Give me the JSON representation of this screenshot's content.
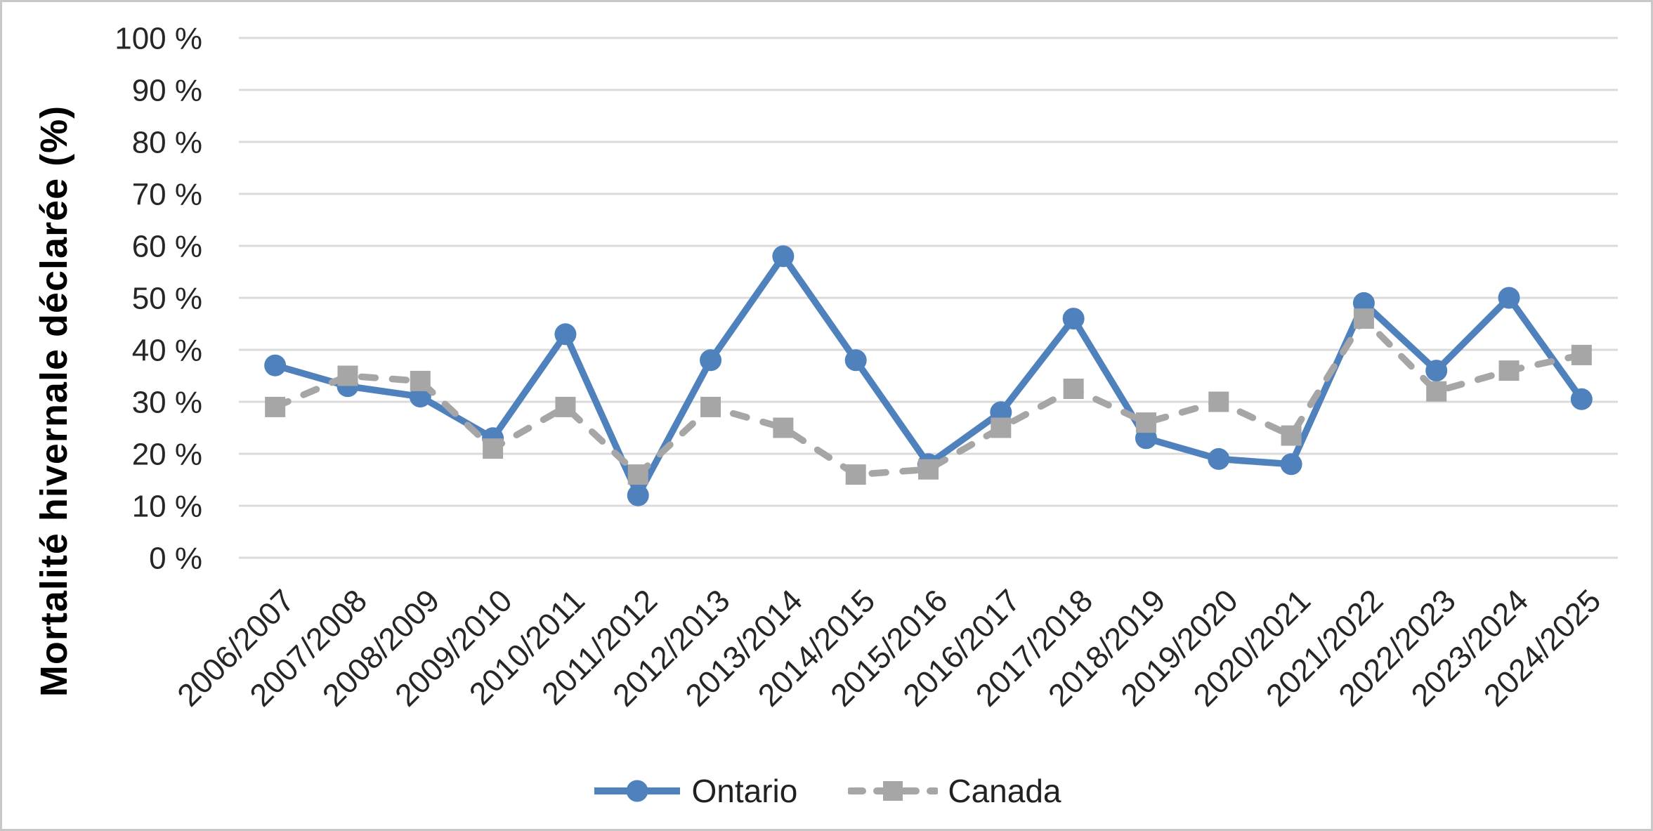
{
  "chart_data": {
    "type": "line",
    "title": "",
    "xlabel": "",
    "ylabel": "Mortalité hivernale déclarée (%)",
    "ylim": [
      0,
      100
    ],
    "y_ticks": [
      0,
      10,
      20,
      30,
      40,
      50,
      60,
      70,
      80,
      90,
      100
    ],
    "y_tick_labels": [
      "0 %",
      "10 %",
      "20 %",
      "30 %",
      "40 %",
      "50 %",
      "60 %",
      "70 %",
      "80 %",
      "90 %",
      "100 %"
    ],
    "grid": true,
    "legend_position": "bottom",
    "categories": [
      "2006/2007",
      "2007/2008",
      "2008/2009",
      "2009/2010",
      "2010/2011",
      "2011/2012",
      "2012/2013",
      "2013/2014",
      "2014/2015",
      "2015/2016",
      "2016/2017",
      "2017/2018",
      "2018/2019",
      "2019/2020",
      "2020/2021",
      "2021/2022",
      "2022/2023",
      "2023/2024",
      "2024/2025"
    ],
    "series": [
      {
        "name": "Ontario",
        "color": "#4F81BD",
        "marker": "circle",
        "line_style": "solid",
        "values": [
          37,
          33,
          31,
          23,
          43,
          12,
          38,
          58,
          38,
          18,
          28,
          46,
          23,
          19,
          18,
          49,
          36,
          50,
          30.5
        ]
      },
      {
        "name": "Canada",
        "color": "#A6A6A6",
        "marker": "square",
        "line_style": "dashed",
        "values": [
          29,
          35,
          34,
          21,
          29,
          16,
          29,
          25,
          16,
          17,
          25,
          32.5,
          26,
          30,
          23.5,
          46,
          32,
          36,
          39
        ]
      }
    ]
  },
  "colors": {
    "gridline": "#DBDBDB",
    "tick_text": "#262626",
    "axis_title_text": "#000000",
    "legend_text": "#212121",
    "background": "#FFFFFF",
    "frame_border": "#C8C8C8"
  }
}
